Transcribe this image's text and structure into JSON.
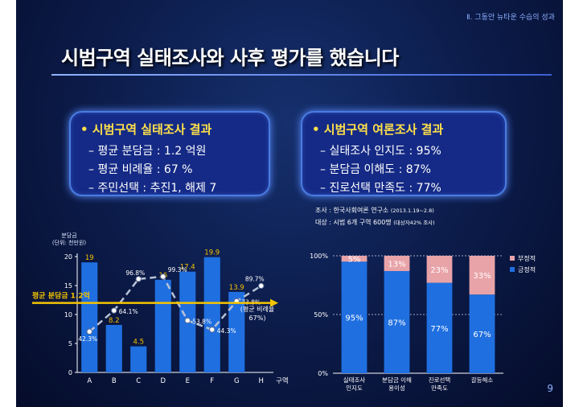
{
  "header": {
    "chapter": "Ⅱ. 그동안 뉴타운 수습의 성과",
    "title": "시범구역 실태조사와  사후 평가를  했습니다",
    "page_number": "9"
  },
  "summary_left": {
    "heading": "• 시범구역 실태조사 결과",
    "lines": [
      "– 평균 분담금  : 1.2 억원",
      "– 평균 비례율  : 67 %",
      "– 주민선택 : 추진1, 해제 7"
    ]
  },
  "summary_right": {
    "heading": "• 시범구역 여론조사 결과",
    "lines": [
      "– 실태조사 인지도 :  95%",
      "– 분담금 이해도   :  87%",
      "– 진로선택 만족도 :  77%"
    ]
  },
  "survey_note": {
    "line1": "조사 : 한국사회여론 연구소",
    "line1_small": "(2013.1.19~2.8)",
    "line2": "대상 : 시범 6개 구역 600명",
    "line2_small": "(대상자42% 조사)"
  },
  "colors": {
    "bar": "#1f6fe0",
    "bar_light": "#e8a3a8",
    "avg_line": "#f5c400",
    "yellow_label": "#f5c400",
    "dashed_line": "#b8c2d6"
  },
  "chart_data": [
    {
      "type": "bar",
      "ylabel": "분담금\n(단위: 천만원)",
      "xlabel": "구역",
      "categories": [
        "A",
        "B",
        "C",
        "D",
        "E",
        "F",
        "G",
        "H"
      ],
      "values": [
        19,
        8.2,
        4.5,
        16,
        17.4,
        19.9,
        13.9,
        0
      ],
      "value_labels": [
        "19",
        "8.2",
        "4.5",
        "16",
        "17.4",
        "19.9",
        "13.9",
        ""
      ],
      "ylim": [
        0,
        20
      ],
      "yticks": [
        0,
        5,
        10,
        15,
        20
      ],
      "reference_line": {
        "label": "평균 분담금 1.2억",
        "value": 12
      },
      "overlay_line": {
        "label": "(평균 비례율\n67%)",
        "style": "dashed",
        "values": [
          42.3,
          64.1,
          96.8,
          99.3,
          53.8,
          44.3,
          73.8,
          89.7
        ],
        "value_labels": [
          "42.3%",
          "64.1%",
          "96.8%",
          "99.3%",
          "53.8%",
          "44.3%",
          "73.8%",
          "89.7%"
        ],
        "ylim": [
          0,
          120
        ]
      },
      "grid": false,
      "legend": "none"
    },
    {
      "type": "bar",
      "stacked": true,
      "percent": true,
      "categories": [
        "실태조사\n인지도",
        "분담금 이해\n용이성",
        "진로선택\n만족도",
        "갈등해소"
      ],
      "yticks": [
        0,
        50,
        100
      ],
      "ytick_labels": [
        "0%",
        "50%",
        "100%"
      ],
      "series": [
        {
          "name": "긍정적",
          "values": [
            95,
            87,
            77,
            67
          ],
          "labels": [
            "95%",
            "87%",
            "77%",
            "67%"
          ]
        },
        {
          "name": "부정적",
          "values": [
            5,
            13,
            23,
            33
          ],
          "labels": [
            "5%",
            "13%",
            "23%",
            "33%"
          ]
        }
      ],
      "legend": "right"
    }
  ]
}
